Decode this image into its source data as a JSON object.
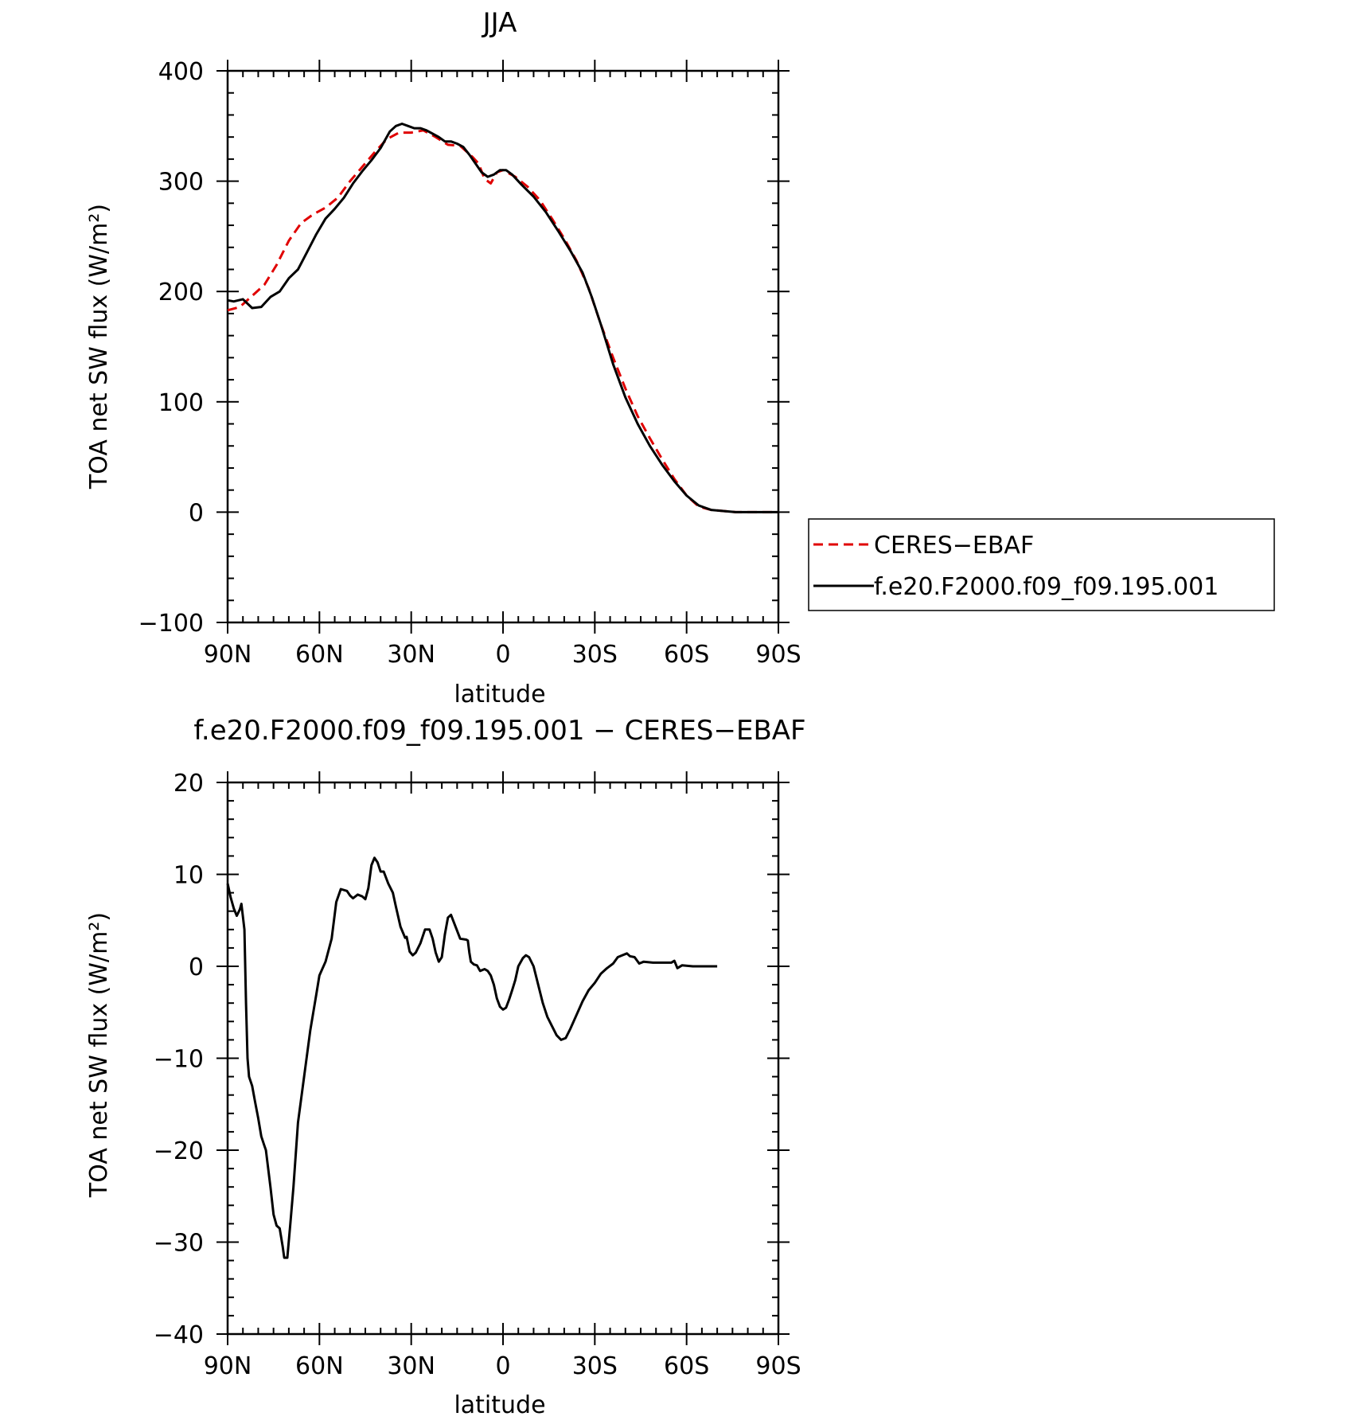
{
  "chart_data": [
    {
      "type": "line",
      "title": "JJA",
      "xlabel": "latitude",
      "ylabel": "TOA net SW flux (W/m²)",
      "xlim": [
        90,
        -90
      ],
      "ylim": [
        -100,
        400
      ],
      "xticks": [
        {
          "value": 90,
          "label": "90N"
        },
        {
          "value": 60,
          "label": "60N"
        },
        {
          "value": 30,
          "label": "30N"
        },
        {
          "value": 0,
          "label": "0"
        },
        {
          "value": -30,
          "label": "30S"
        },
        {
          "value": -60,
          "label": "60S"
        },
        {
          "value": -90,
          "label": "90S"
        }
      ],
      "yticks": [
        {
          "value": 400,
          "label": "400"
        },
        {
          "value": 300,
          "label": "300"
        },
        {
          "value": 200,
          "label": "200"
        },
        {
          "value": 100,
          "label": "100"
        },
        {
          "value": 0,
          "label": "0"
        },
        {
          "value": -100,
          "label": "−100"
        }
      ],
      "legend_position": "right",
      "series": [
        {
          "name": "CERES−EBAF",
          "color": "#e00000",
          "dash": "dashed",
          "points": [
            [
              90,
              183
            ],
            [
              86,
              186
            ],
            [
              82,
              196
            ],
            [
              78,
              206
            ],
            [
              74,
              224
            ],
            [
              70,
              246
            ],
            [
              66,
              262
            ],
            [
              62,
              270
            ],
            [
              58,
              276
            ],
            [
              54,
              285
            ],
            [
              50,
              300
            ],
            [
              46,
              313
            ],
            [
              42,
              326
            ],
            [
              38,
              338
            ],
            [
              34,
              344
            ],
            [
              30,
              344
            ],
            [
              26,
              346
            ],
            [
              22,
              340
            ],
            [
              18,
              333
            ],
            [
              14,
              332
            ],
            [
              10,
              322
            ],
            [
              8,
              316
            ],
            [
              6,
              302
            ],
            [
              4,
              298
            ],
            [
              2,
              308
            ],
            [
              0,
              310
            ],
            [
              -4,
              304
            ],
            [
              -8,
              295
            ],
            [
              -12,
              283
            ],
            [
              -16,
              266
            ],
            [
              -20,
              248
            ],
            [
              -24,
              228
            ],
            [
              -28,
              203
            ],
            [
              -32,
              170
            ],
            [
              -36,
              140
            ],
            [
              -40,
              112
            ],
            [
              -44,
              87
            ],
            [
              -48,
              67
            ],
            [
              -52,
              48
            ],
            [
              -56,
              30
            ],
            [
              -60,
              15
            ],
            [
              -64,
              5
            ],
            [
              -68,
              2
            ],
            [
              -72,
              1
            ],
            [
              -76,
              0
            ],
            [
              -80,
              0
            ],
            [
              -84,
              0
            ],
            [
              -88,
              0
            ],
            [
              -90,
              0
            ]
          ]
        },
        {
          "name": "f.e20.F2000.f09_f09.195.001",
          "color": "#000000",
          "dash": "solid",
          "points": [
            [
              90,
              192
            ],
            [
              88,
              191
            ],
            [
              85,
              193
            ],
            [
              82,
              185
            ],
            [
              79,
              186
            ],
            [
              76,
              195
            ],
            [
              73,
              200
            ],
            [
              70,
              212
            ],
            [
              67,
              220
            ],
            [
              64,
              236
            ],
            [
              61,
              252
            ],
            [
              58,
              266
            ],
            [
              55,
              275
            ],
            [
              52,
              285
            ],
            [
              49,
              298
            ],
            [
              46,
              309
            ],
            [
              43,
              319
            ],
            [
              40,
              330
            ],
            [
              37,
              345
            ],
            [
              35,
              350
            ],
            [
              33,
              352
            ],
            [
              31,
              350
            ],
            [
              29,
              348
            ],
            [
              27,
              348
            ],
            [
              25,
              346
            ],
            [
              23,
              343
            ],
            [
              21,
              340
            ],
            [
              19,
              336
            ],
            [
              17,
              336
            ],
            [
              15,
              334
            ],
            [
              13,
              331
            ],
            [
              11,
              324
            ],
            [
              9,
              316
            ],
            [
              7,
              308
            ],
            [
              5,
              304
            ],
            [
              3,
              306
            ],
            [
              1,
              310
            ],
            [
              -1,
              310
            ],
            [
              -3,
              306
            ],
            [
              -6,
              297
            ],
            [
              -10,
              286
            ],
            [
              -14,
              272
            ],
            [
              -18,
              255
            ],
            [
              -22,
              237
            ],
            [
              -26,
              217
            ],
            [
              -29,
              195
            ],
            [
              -32,
              170
            ],
            [
              -36,
              134
            ],
            [
              -40,
              104
            ],
            [
              -44,
              80
            ],
            [
              -48,
              60
            ],
            [
              -52,
              43
            ],
            [
              -56,
              28
            ],
            [
              -60,
              15
            ],
            [
              -64,
              6
            ],
            [
              -68,
              2
            ],
            [
              -72,
              1
            ],
            [
              -76,
              0
            ],
            [
              -80,
              0
            ],
            [
              -84,
              0
            ],
            [
              -88,
              0
            ],
            [
              -90,
              0
            ]
          ]
        }
      ]
    },
    {
      "type": "line",
      "title": "f.e20.F2000.f09_f09.195.001 − CERES−EBAF",
      "xlabel": "latitude",
      "ylabel": "TOA net SW flux (W/m²)",
      "xlim": [
        90,
        -90
      ],
      "ylim": [
        -40,
        20
      ],
      "xticks": [
        {
          "value": 90,
          "label": "90N"
        },
        {
          "value": 60,
          "label": "60N"
        },
        {
          "value": 30,
          "label": "30N"
        },
        {
          "value": 0,
          "label": "0"
        },
        {
          "value": -30,
          "label": "30S"
        },
        {
          "value": -60,
          "label": "60S"
        },
        {
          "value": -90,
          "label": "90S"
        }
      ],
      "yticks": [
        {
          "value": 20,
          "label": "20"
        },
        {
          "value": 10,
          "label": "10"
        },
        {
          "value": 0,
          "label": "0"
        },
        {
          "value": -10,
          "label": "−10"
        },
        {
          "value": -20,
          "label": "−20"
        },
        {
          "value": -30,
          "label": "−30"
        },
        {
          "value": -40,
          "label": "−40"
        }
      ],
      "series": [
        {
          "color": "#000000",
          "dash": "solid",
          "points": [
            [
              90,
              9
            ],
            [
              89,
              7.5
            ],
            [
              88,
              6.3
            ],
            [
              87,
              5.5
            ],
            [
              86,
              6.2
            ],
            [
              85.5,
              6.8
            ],
            [
              84.5,
              4
            ],
            [
              84,
              -4
            ],
            [
              83.5,
              -10
            ],
            [
              83,
              -12
            ],
            [
              82,
              -13
            ],
            [
              81,
              -14.8
            ],
            [
              80,
              -16.5
            ],
            [
              79,
              -18.5
            ],
            [
              78,
              -19.5
            ],
            [
              77.5,
              -20
            ],
            [
              76,
              -24
            ],
            [
              75,
              -27
            ],
            [
              74,
              -28.2
            ],
            [
              73,
              -28.5
            ],
            [
              72,
              -30.5
            ],
            [
              71.5,
              -31.7
            ],
            [
              70.5,
              -31.7
            ],
            [
              69.5,
              -28
            ],
            [
              68.5,
              -24
            ],
            [
              67,
              -17
            ],
            [
              65,
              -12
            ],
            [
              63,
              -7
            ],
            [
              61,
              -3
            ],
            [
              60,
              -1
            ],
            [
              58,
              0.5
            ],
            [
              56,
              3
            ],
            [
              54.5,
              7
            ],
            [
              53,
              8.4
            ],
            [
              51,
              8.2
            ],
            [
              50,
              7.7
            ],
            [
              49,
              7.4
            ],
            [
              47.5,
              7.8
            ],
            [
              46,
              7.6
            ],
            [
              45,
              7.3
            ],
            [
              44,
              8.5
            ],
            [
              43,
              11
            ],
            [
              42,
              11.8
            ],
            [
              41,
              11.3
            ],
            [
              40,
              10.3
            ],
            [
              39,
              10.3
            ],
            [
              37.5,
              9
            ],
            [
              36,
              8
            ],
            [
              35,
              6.5
            ],
            [
              33.5,
              4.3
            ],
            [
              32,
              3.1
            ],
            [
              31.5,
              3.2
            ],
            [
              30.5,
              1.6
            ],
            [
              29.5,
              1.2
            ],
            [
              28.5,
              1.5
            ],
            [
              27,
              2.5
            ],
            [
              25.5,
              4
            ],
            [
              24,
              4
            ],
            [
              23,
              3
            ],
            [
              22,
              1.5
            ],
            [
              21,
              0.5
            ],
            [
              20,
              1
            ],
            [
              19,
              3.5
            ],
            [
              18,
              5.3
            ],
            [
              17,
              5.6
            ],
            [
              15.5,
              4.3
            ],
            [
              14,
              3
            ],
            [
              12,
              2.9
            ],
            [
              11.5,
              2.8
            ],
            [
              11,
              1.5
            ],
            [
              10.5,
              0.5
            ],
            [
              9.5,
              0.2
            ],
            [
              8.5,
              0.1
            ],
            [
              7.5,
              -0.5
            ],
            [
              6,
              -0.3
            ],
            [
              5,
              -0.5
            ],
            [
              4,
              -1
            ],
            [
              3,
              -2
            ],
            [
              2,
              -3.5
            ],
            [
              1,
              -4.4
            ],
            [
              0,
              -4.7
            ],
            [
              -1,
              -4.5
            ],
            [
              -2,
              -3.6
            ],
            [
              -3,
              -2.6
            ],
            [
              -4,
              -1.5
            ],
            [
              -5,
              0
            ],
            [
              -6.5,
              0.9
            ],
            [
              -7.5,
              1.2
            ],
            [
              -8.5,
              1
            ],
            [
              -10,
              0
            ],
            [
              -11.5,
              -2
            ],
            [
              -13,
              -4
            ],
            [
              -14.5,
              -5.5
            ],
            [
              -16,
              -6.5
            ],
            [
              -17.5,
              -7.5
            ],
            [
              -19,
              -8
            ],
            [
              -20.5,
              -7.8
            ],
            [
              -22,
              -6.8
            ],
            [
              -24,
              -5.3
            ],
            [
              -26,
              -3.8
            ],
            [
              -28,
              -2.6
            ],
            [
              -30,
              -1.8
            ],
            [
              -32,
              -0.8
            ],
            [
              -34,
              -0.2
            ],
            [
              -36,
              0.3
            ],
            [
              -37.5,
              1
            ],
            [
              -39,
              1.2
            ],
            [
              -40.5,
              1.4
            ],
            [
              -41.5,
              1.1
            ],
            [
              -43,
              1
            ],
            [
              -44.5,
              0.3
            ],
            [
              -46,
              0.5
            ],
            [
              -49,
              0.4
            ],
            [
              -52,
              0.4
            ],
            [
              -55,
              0.4
            ],
            [
              -56,
              0.6
            ],
            [
              -57,
              -0.2
            ],
            [
              -58.5,
              0.1
            ],
            [
              -62,
              0
            ],
            [
              -66,
              0
            ],
            [
              -70,
              0
            ]
          ]
        }
      ]
    }
  ]
}
